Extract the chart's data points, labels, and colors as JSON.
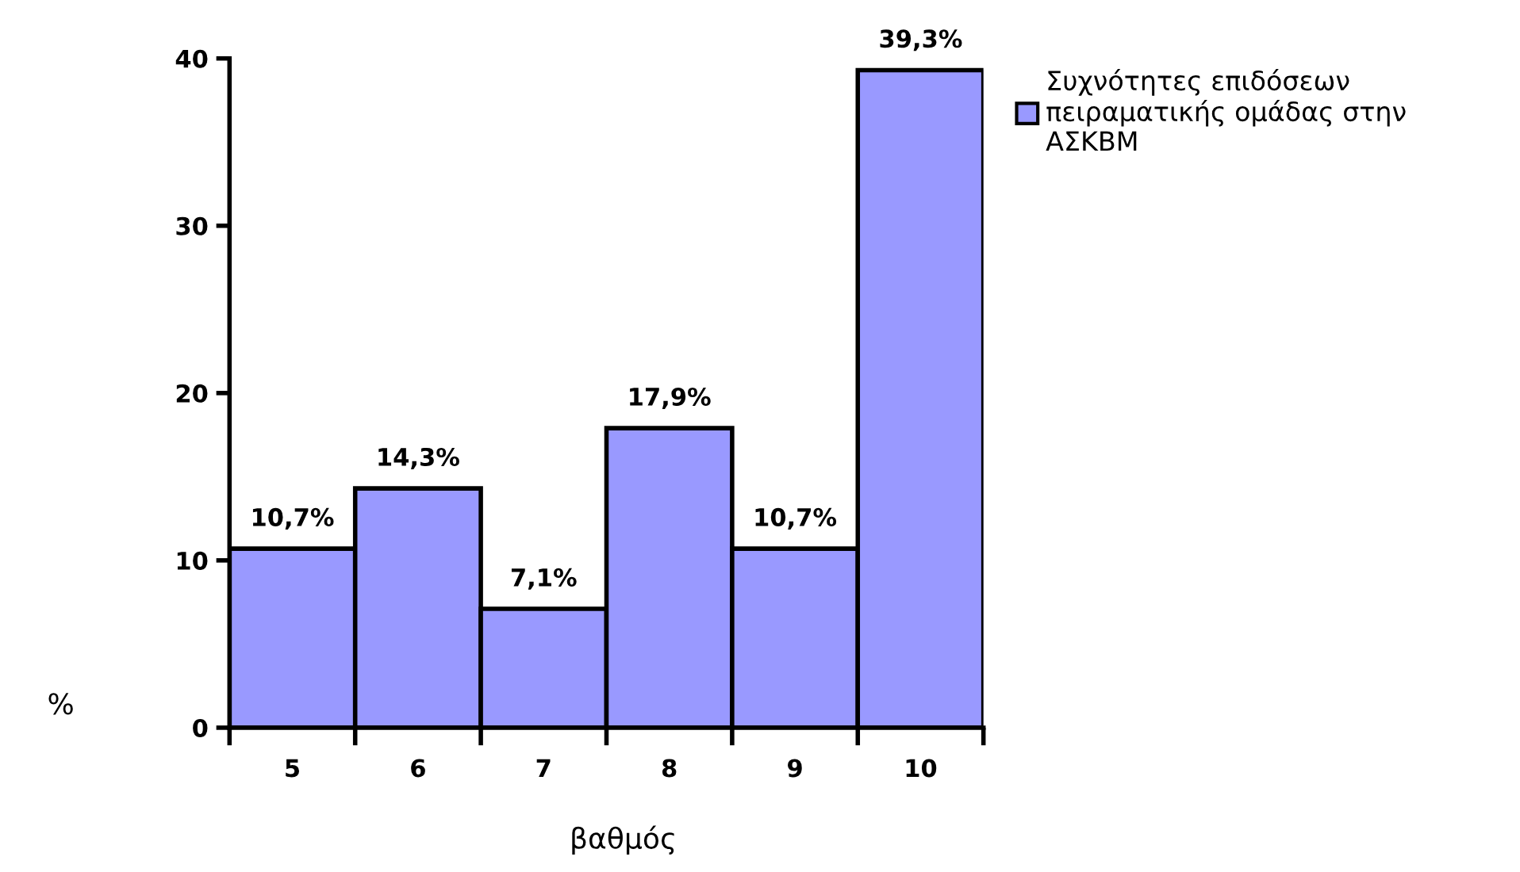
{
  "chart_data": {
    "type": "bar",
    "xlabel": "βαθμός",
    "ylabel": "%",
    "categories": [
      "5",
      "6",
      "7",
      "8",
      "9",
      "10"
    ],
    "series": [
      {
        "name": "Συχνότητες επιδόσεων\nπειραματικής ομάδας στην\nΑΣΚΒΜ",
        "color": "#9999ff",
        "values": [
          10.7,
          14.3,
          7.1,
          17.9,
          10.7,
          39.3
        ],
        "value_labels": [
          "10,7%",
          "14,3%",
          "7,1%",
          "17,9%",
          "10,7%",
          "39,3%"
        ]
      }
    ],
    "ylim": [
      0,
      40
    ],
    "yticks": [
      0,
      10,
      20,
      30,
      40
    ],
    "grid": false,
    "legend": "top right"
  }
}
